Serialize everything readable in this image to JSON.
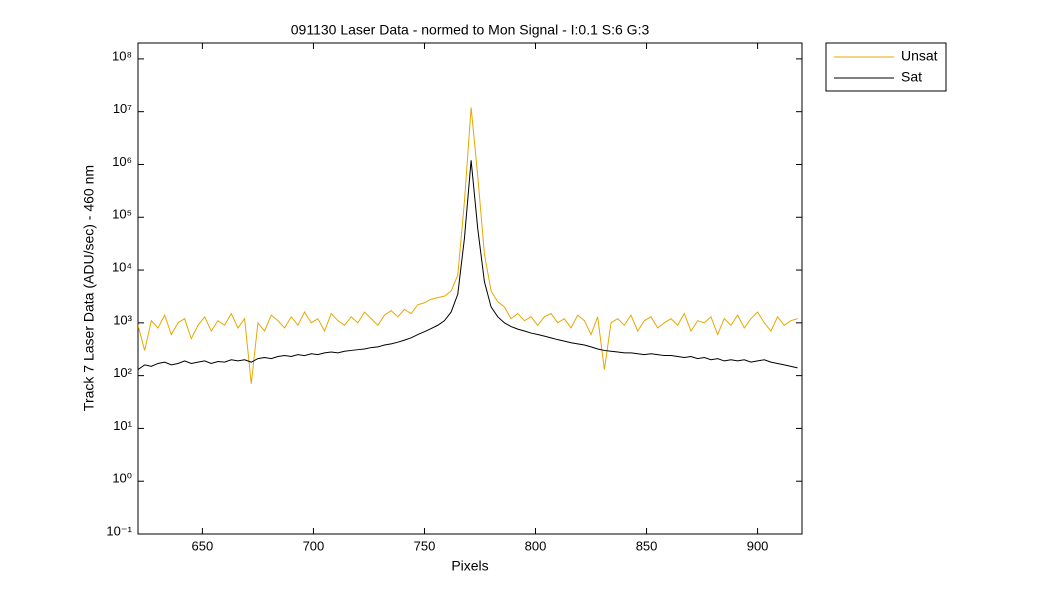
{
  "chart_data": {
    "type": "line",
    "title": "091130 Laser Data - normed to Mon Signal -   I:0.1  S:6  G:3",
    "x_label": "Pixels",
    "y_label": "Track 7 Laser Data (ADU/sec) - 460 nm",
    "yscale": "log",
    "legend": "outside-top-right",
    "x": [
      621,
      624,
      627,
      630,
      633,
      636,
      639,
      642,
      645,
      648,
      651,
      654,
      657,
      660,
      663,
      666,
      669,
      672,
      675,
      678,
      681,
      684,
      687,
      690,
      693,
      696,
      699,
      702,
      705,
      708,
      711,
      714,
      717,
      720,
      723,
      726,
      729,
      732,
      735,
      738,
      741,
      744,
      747,
      750,
      753,
      756,
      759,
      762,
      765,
      768,
      771,
      774,
      777,
      780,
      783,
      786,
      789,
      792,
      795,
      798,
      801,
      804,
      807,
      810,
      813,
      816,
      819,
      822,
      825,
      828,
      831,
      834,
      837,
      840,
      843,
      846,
      849,
      852,
      855,
      858,
      861,
      864,
      867,
      870,
      873,
      876,
      879,
      882,
      885,
      888,
      891,
      894,
      897,
      900,
      903,
      906,
      909,
      912,
      915,
      918
    ],
    "series": [
      {
        "name": "Unsat",
        "color": "#e6a800",
        "values": [
          900,
          300,
          1100,
          800,
          1400,
          600,
          1000,
          1200,
          500,
          900,
          1300,
          700,
          1100,
          900,
          1500,
          800,
          1200,
          70,
          1000,
          700,
          1400,
          1100,
          800,
          1300,
          900,
          1600,
          1000,
          1200,
          700,
          1500,
          1100,
          900,
          1300,
          1000,
          1600,
          1200,
          900,
          1400,
          1700,
          1300,
          1800,
          1500,
          2200,
          2400,
          2800,
          3000,
          3200,
          4000,
          8000,
          200000,
          12000000,
          600000,
          20000,
          4000,
          2500,
          2000,
          1200,
          1500,
          1100,
          1300,
          900,
          1300,
          1500,
          1000,
          1200,
          800,
          1400,
          1100,
          600,
          1300,
          130,
          1000,
          1200,
          900,
          1400,
          700,
          1100,
          1300,
          800,
          1000,
          1200,
          900,
          1500,
          700,
          1100,
          1000,
          1300,
          600,
          1200,
          900,
          1400,
          800,
          1200,
          1600,
          1000,
          700,
          1300,
          900,
          1100,
          1200
        ]
      },
      {
        "name": "Sat",
        "color": "#000000",
        "values": [
          130,
          160,
          150,
          170,
          180,
          160,
          170,
          190,
          170,
          180,
          190,
          170,
          185,
          180,
          200,
          190,
          200,
          180,
          210,
          220,
          210,
          230,
          240,
          230,
          250,
          240,
          260,
          250,
          270,
          280,
          270,
          290,
          300,
          310,
          320,
          340,
          350,
          380,
          400,
          430,
          470,
          520,
          600,
          680,
          780,
          900,
          1100,
          1600,
          3500,
          40000,
          1200000,
          60000,
          6000,
          2000,
          1300,
          1000,
          850,
          760,
          700,
          640,
          600,
          560,
          520,
          480,
          450,
          420,
          400,
          380,
          350,
          320,
          300,
          290,
          280,
          270,
          270,
          260,
          250,
          260,
          250,
          240,
          240,
          230,
          220,
          230,
          210,
          220,
          200,
          210,
          190,
          200,
          190,
          200,
          180,
          190,
          200,
          180,
          170,
          160,
          150,
          140
        ]
      }
    ],
    "xlim": [
      621,
      920
    ],
    "xticks": [
      650,
      700,
      750,
      800,
      850,
      900
    ],
    "ylim": [
      0.1,
      200000000
    ],
    "yticks": [
      {
        "value": 0.1,
        "label": "10⁻¹"
      },
      {
        "value": 1,
        "label": "10⁰"
      },
      {
        "value": 10,
        "label": "10¹"
      },
      {
        "value": 100,
        "label": "10²"
      },
      {
        "value": 1000,
        "label": "10³"
      },
      {
        "value": 10000,
        "label": "10⁴"
      },
      {
        "value": 100000,
        "label": "10⁵"
      },
      {
        "value": 1000000,
        "label": "10⁶"
      },
      {
        "value": 10000000,
        "label": "10⁷"
      },
      {
        "value": 100000000,
        "label": "10⁸"
      }
    ]
  }
}
